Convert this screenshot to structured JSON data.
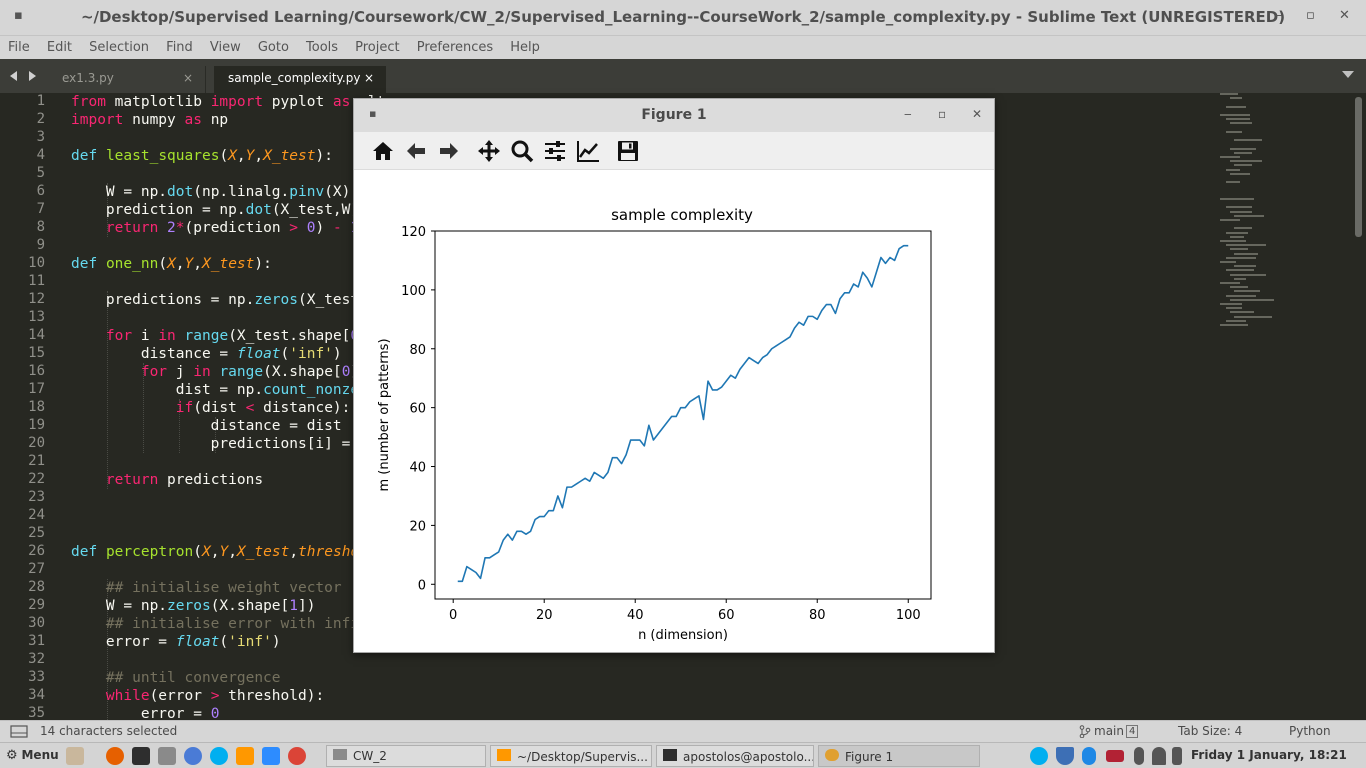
{
  "window": {
    "title": "~/Desktop/Supervised Learning/Coursework/CW_2/Supervised_Learning--CourseWork_2/sample_complexity.py - Sublime Text (UNREGISTERED)",
    "min": "‒",
    "max": "▫",
    "close": "✕",
    "menu_glyph": "▪"
  },
  "menu": [
    "File",
    "Edit",
    "Selection",
    "Find",
    "View",
    "Goto",
    "Tools",
    "Project",
    "Preferences",
    "Help"
  ],
  "tabs": [
    {
      "label": "ex1.3.py",
      "active": false
    },
    {
      "label": "sample_complexity.py",
      "active": true
    }
  ],
  "tab_close": "×",
  "line_numbers": [
    "1",
    "2",
    "3",
    "4",
    "5",
    "6",
    "7",
    "8",
    "9",
    "10",
    "11",
    "12",
    "13",
    "14",
    "15",
    "16",
    "17",
    "18",
    "19",
    "20",
    "21",
    "22",
    "23",
    "24",
    "25",
    "26",
    "27",
    "28",
    "29",
    "30",
    "31",
    "32",
    "33",
    "34",
    "35"
  ],
  "code_visible_tail": {
    "l1": "from matplotlib import pyplot as plt"
  },
  "status": {
    "selection": "14 characters selected",
    "branch": "main",
    "branch_count": "4",
    "tab_size": "Tab Size: 4",
    "syntax": "Python"
  },
  "taskbar": {
    "menu": "Menu",
    "windows": [
      {
        "label": "CW_2",
        "active": false
      },
      {
        "label": "~/Desktop/Supervis...",
        "active": false
      },
      {
        "label": "apostolos@apostolo...",
        "active": false
      },
      {
        "label": "Figure 1",
        "active": true
      }
    ],
    "clock": "Friday  1 January, 18:21"
  },
  "figure": {
    "title": "Figure 1",
    "toolbar": [
      "home-icon",
      "back-icon",
      "forward-icon",
      "pan-icon",
      "zoom-icon",
      "configure-subplots-icon",
      "edit-axis-icon",
      "save-icon"
    ]
  },
  "chart_data": {
    "type": "line",
    "title": "sample complexity",
    "xlabel": "n (dimension)",
    "ylabel": "m (number of patterns)",
    "xlim": [
      -4,
      105
    ],
    "ylim": [
      -5,
      120
    ],
    "xticks": [
      0,
      20,
      40,
      60,
      80,
      100
    ],
    "yticks": [
      0,
      20,
      40,
      60,
      80,
      100,
      120
    ],
    "color": "#1f77b4",
    "grid": false,
    "x": [
      1,
      2,
      3,
      4,
      5,
      6,
      7,
      8,
      9,
      10,
      11,
      12,
      13,
      14,
      15,
      16,
      17,
      18,
      19,
      20,
      21,
      22,
      23,
      24,
      25,
      26,
      27,
      28,
      29,
      30,
      31,
      32,
      33,
      34,
      35,
      36,
      37,
      38,
      39,
      40,
      41,
      42,
      43,
      44,
      45,
      46,
      47,
      48,
      49,
      50,
      51,
      52,
      53,
      54,
      55,
      56,
      57,
      58,
      59,
      60,
      61,
      62,
      63,
      64,
      65,
      66,
      67,
      68,
      69,
      70,
      71,
      72,
      73,
      74,
      75,
      76,
      77,
      78,
      79,
      80,
      81,
      82,
      83,
      84,
      85,
      86,
      87,
      88,
      89,
      90,
      91,
      92,
      93,
      94,
      95,
      96,
      97,
      98,
      99,
      100
    ],
    "y": [
      1,
      1,
      6,
      5,
      4,
      2,
      9,
      9,
      10,
      11,
      15,
      17,
      15,
      18,
      18,
      17,
      18,
      22,
      23,
      23,
      25,
      25,
      30,
      26,
      33,
      33,
      34,
      35,
      36,
      35,
      38,
      37,
      36,
      38,
      43,
      43,
      41,
      44,
      49,
      49,
      49,
      47,
      54,
      49,
      51,
      53,
      55,
      57,
      57,
      60,
      60,
      62,
      63,
      64,
      56,
      69,
      66,
      66,
      67,
      69,
      71,
      70,
      73,
      75,
      77,
      76,
      75,
      77,
      78,
      80,
      81,
      82,
      83,
      84,
      87,
      89,
      88,
      91,
      91,
      90,
      93,
      95,
      95,
      92,
      97,
      99,
      99,
      102,
      101,
      106,
      104,
      101,
      106,
      111,
      109,
      111,
      110,
      114,
      115,
      115
    ]
  }
}
